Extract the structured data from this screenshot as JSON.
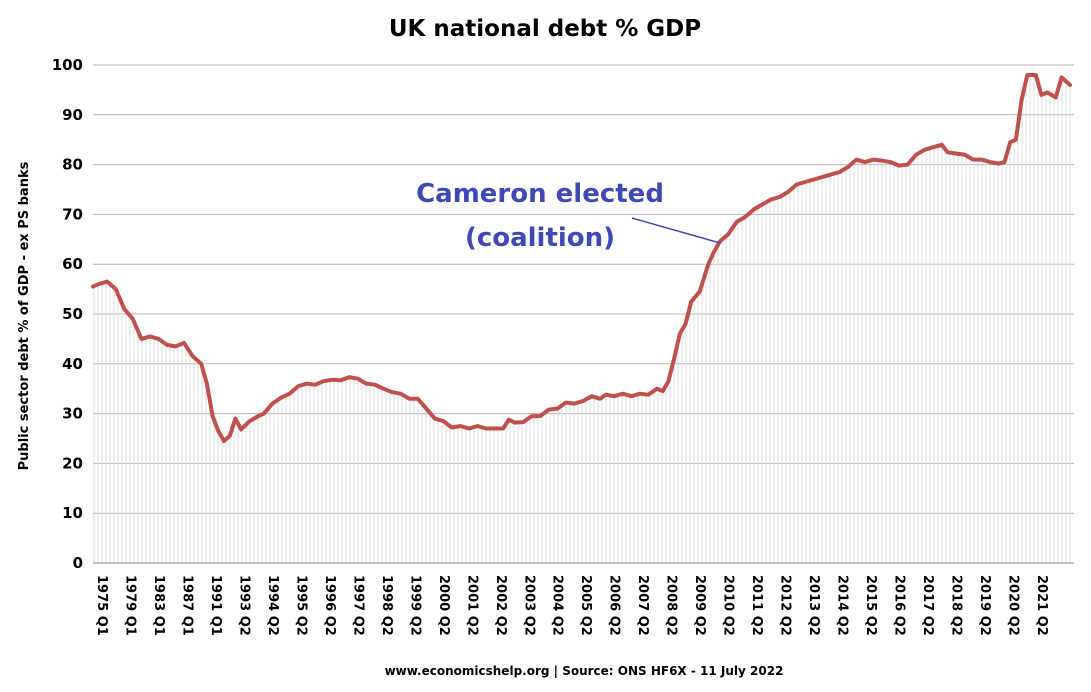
{
  "chart_data": {
    "type": "line",
    "title": "UK national debt % GDP",
    "ylabel": "Public sector debt % of GDP - ex PS banks",
    "xlabel": "",
    "ylim": [
      0,
      100
    ],
    "yticks": [
      "0",
      "10",
      "20",
      "30",
      "40",
      "50",
      "60",
      "70",
      "80",
      "90",
      "100"
    ],
    "grid": true,
    "legend": "none",
    "x_tick_labels": [
      "1975 Q1",
      "1979 Q1",
      "1983 Q1",
      "1987 Q1",
      "1991 Q1",
      "1993 Q2",
      "1994 Q2",
      "1995 Q2",
      "1996 Q2",
      "1997 Q2",
      "1998 Q2",
      "1999 Q2",
      "2000 Q2",
      "2001 Q2",
      "2002 Q2",
      "2003 Q2",
      "2004 Q2",
      "2005 Q2",
      "2006 Q2",
      "2007 Q2",
      "2008 Q2",
      "2009 Q2",
      "2010 Q2",
      "2011 Q2",
      "2012 Q2",
      "2013 Q2",
      "2014 Q2",
      "2015 Q2",
      "2016 Q2",
      "2017 Q2",
      "2018 Q2",
      "2019 Q2",
      "2020 Q2",
      "2021 Q2"
    ],
    "series_color": "#c0504d",
    "points": [
      [
        0,
        55.5
      ],
      [
        0.2,
        56
      ],
      [
        0.5,
        56.5
      ],
      [
        0.8,
        55
      ],
      [
        1.1,
        51
      ],
      [
        1.4,
        49
      ],
      [
        1.7,
        45
      ],
      [
        2.0,
        45.5
      ],
      [
        2.3,
        45
      ],
      [
        2.6,
        43.8
      ],
      [
        2.9,
        43.5
      ],
      [
        3.2,
        44.2
      ],
      [
        3.5,
        41.5
      ],
      [
        3.8,
        40
      ],
      [
        4.0,
        36
      ],
      [
        4.2,
        29.5
      ],
      [
        4.4,
        26.5
      ],
      [
        4.6,
        24.5
      ],
      [
        4.8,
        25.5
      ],
      [
        5.0,
        29
      ],
      [
        5.2,
        26.8
      ],
      [
        5.5,
        28.5
      ],
      [
        5.8,
        29.5
      ],
      [
        6.0,
        30
      ],
      [
        6.3,
        32
      ],
      [
        6.6,
        33.2
      ],
      [
        6.9,
        34
      ],
      [
        7.2,
        35.5
      ],
      [
        7.5,
        36
      ],
      [
        7.8,
        35.8
      ],
      [
        8.1,
        36.5
      ],
      [
        8.4,
        36.8
      ],
      [
        8.7,
        36.7
      ],
      [
        9.0,
        37.3
      ],
      [
        9.3,
        37
      ],
      [
        9.6,
        36
      ],
      [
        9.9,
        35.8
      ],
      [
        10.2,
        35
      ],
      [
        10.5,
        34.3
      ],
      [
        10.8,
        34
      ],
      [
        11.1,
        33
      ],
      [
        11.4,
        33
      ],
      [
        11.7,
        31
      ],
      [
        12.0,
        29
      ],
      [
        12.3,
        28.5
      ],
      [
        12.6,
        27.2
      ],
      [
        12.9,
        27.5
      ],
      [
        13.2,
        27
      ],
      [
        13.5,
        27.5
      ],
      [
        13.8,
        27
      ],
      [
        14.1,
        27
      ],
      [
        14.4,
        27
      ],
      [
        14.6,
        28.8
      ],
      [
        14.8,
        28.2
      ],
      [
        15.1,
        28.3
      ],
      [
        15.4,
        29.5
      ],
      [
        15.7,
        29.5
      ],
      [
        16.0,
        30.8
      ],
      [
        16.3,
        31
      ],
      [
        16.6,
        32.2
      ],
      [
        16.9,
        32
      ],
      [
        17.2,
        32.5
      ],
      [
        17.5,
        33.5
      ],
      [
        17.8,
        33
      ],
      [
        18.0,
        33.8
      ],
      [
        18.3,
        33.5
      ],
      [
        18.6,
        34
      ],
      [
        18.9,
        33.5
      ],
      [
        19.2,
        34
      ],
      [
        19.5,
        33.8
      ],
      [
        19.8,
        35
      ],
      [
        20.0,
        34.5
      ],
      [
        20.2,
        36.5
      ],
      [
        20.4,
        41
      ],
      [
        20.6,
        46
      ],
      [
        20.8,
        48
      ],
      [
        21.0,
        52.5
      ],
      [
        21.3,
        54.5
      ],
      [
        21.6,
        60
      ],
      [
        21.8,
        62.5
      ],
      [
        22.0,
        64.5
      ],
      [
        22.3,
        66
      ],
      [
        22.6,
        68.5
      ],
      [
        22.9,
        69.5
      ],
      [
        23.2,
        71
      ],
      [
        23.5,
        72
      ],
      [
        23.8,
        73
      ],
      [
        24.1,
        73.5
      ],
      [
        24.4,
        74.5
      ],
      [
        24.7,
        76
      ],
      [
        25.0,
        76.5
      ],
      [
        25.3,
        77
      ],
      [
        25.6,
        77.5
      ],
      [
        25.9,
        78
      ],
      [
        26.2,
        78.5
      ],
      [
        26.5,
        79.5
      ],
      [
        26.8,
        81
      ],
      [
        27.1,
        80.5
      ],
      [
        27.4,
        81
      ],
      [
        27.7,
        80.8
      ],
      [
        28.0,
        80.5
      ],
      [
        28.3,
        79.8
      ],
      [
        28.6,
        80
      ],
      [
        28.9,
        82
      ],
      [
        29.2,
        83
      ],
      [
        29.5,
        83.5
      ],
      [
        29.8,
        84
      ],
      [
        30.0,
        82.5
      ],
      [
        30.3,
        82.2
      ],
      [
        30.6,
        82
      ],
      [
        30.9,
        81
      ],
      [
        31.2,
        81
      ],
      [
        31.5,
        80.5
      ],
      [
        31.8,
        80.2
      ],
      [
        32.0,
        80.5
      ],
      [
        32.2,
        84.5
      ],
      [
        32.4,
        85
      ],
      [
        32.6,
        93
      ],
      [
        32.8,
        98
      ],
      [
        33.1,
        98
      ],
      [
        33.3,
        94
      ],
      [
        33.5,
        94.5
      ],
      [
        33.8,
        93.5
      ],
      [
        34.0,
        97.5
      ],
      [
        34.3,
        96
      ]
    ],
    "annotations": [
      "Cameron elected",
      "(coalition)"
    ],
    "source": "www.economicshelp.org | Source: ONS HF6X - 11 July 2022"
  }
}
